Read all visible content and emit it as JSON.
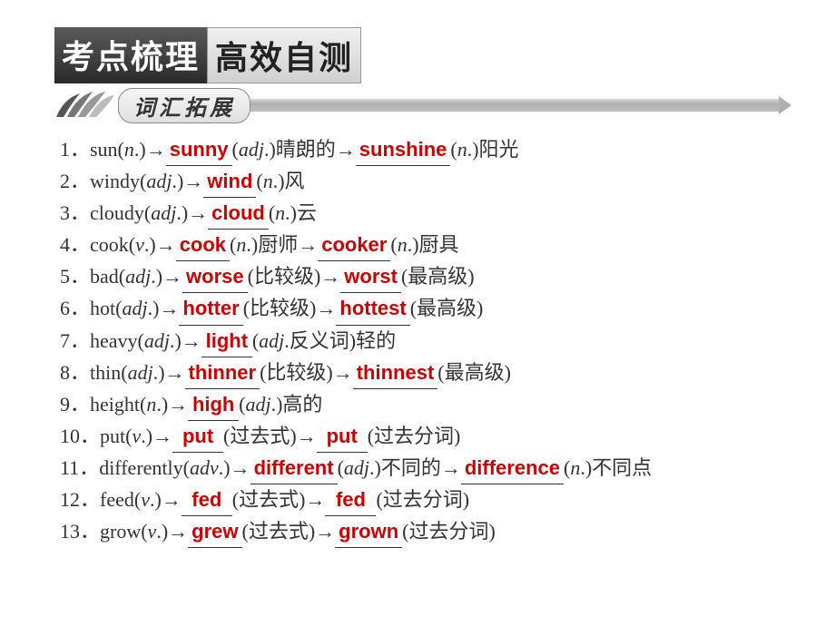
{
  "header": {
    "tab1": "考点梳理",
    "tab2": "高效自测"
  },
  "subheader": "词汇拓展",
  "colors": {
    "answer": "#cc0000",
    "text": "#333333",
    "tab_dark_bg": "#2a2a2a",
    "tab_dark_fg": "#ffffff",
    "tab_light_fg": "#222222",
    "arrow_bar": "#b0b0b0"
  },
  "typography": {
    "tab_fontsize": 36,
    "subheader_fontsize": 24,
    "body_fontsize": 22,
    "line_height": 1.55
  },
  "items": [
    {
      "num": "1",
      "prefix": "．sun(",
      "pos1": "n",
      "mid1": ".)→",
      "ans1": "sunny",
      "mid2": "(",
      "pos2": "adj",
      "mid3": ".)晴朗的→",
      "ans2": "sunshine",
      "mid4": "(",
      "pos3": "n",
      "tail": ".)阳光"
    },
    {
      "num": "2",
      "prefix": "．windy(",
      "pos1": "adj",
      "mid1": ".)→",
      "ans1": "wind",
      "mid2": "(",
      "pos2": "n",
      "tail": ".)风"
    },
    {
      "num": "3",
      "prefix": "．cloudy(",
      "pos1": "adj",
      "mid1": ".)→",
      "ans1": "cloud",
      "mid2": "(",
      "pos2": "n",
      "tail": ".)云"
    },
    {
      "num": "4",
      "prefix": "．cook(",
      "pos1": "v",
      "mid1": ".)→",
      "ans1": "cook",
      "mid2": "(",
      "pos2": "n",
      "mid3": ".)厨师→",
      "ans2": "cooker",
      "mid4": "(",
      "pos3": "n",
      "tail": ".)厨具"
    },
    {
      "num": "5",
      "prefix": "．bad(",
      "pos1": "adj",
      "mid1": ".)→",
      "ans1": "worse",
      "mid2": "(比较级)→",
      "ans2": "worst",
      "tail": "(最高级)"
    },
    {
      "num": "6",
      "prefix": "．hot(",
      "pos1": "adj",
      "mid1": ".)→",
      "ans1": "hotter",
      "mid2": "(比较级)→",
      "ans2": "hottest",
      "tail": "(最高级)"
    },
    {
      "num": "7",
      "prefix": "．heavy(",
      "pos1": "adj",
      "mid1": ".)→",
      "ans1": "light",
      "mid2": "(",
      "pos2": "adj",
      "tail": ".反义词)轻的"
    },
    {
      "num": "8",
      "prefix": "．thin(",
      "pos1": "adj",
      "mid1": ".)→",
      "ans1": "thinner",
      "mid2": "(比较级)→",
      "ans2": "thinnest",
      "tail": "(最高级)"
    },
    {
      "num": "9",
      "prefix": "．height(",
      "pos1": "n",
      "mid1": ".)→",
      "ans1": "high",
      "mid2": "(",
      "pos2": "adj",
      "tail": ".)高的"
    },
    {
      "num": "10",
      "prefix": "．put(",
      "pos1": "v",
      "mid1": ".)→",
      "ans1": "put",
      "mid2": "(过去式)→",
      "ans2": "put",
      "tail": "(过去分词)"
    },
    {
      "num": "11",
      "prefix": "．differently(",
      "pos1": "adv",
      "mid1": ".)→",
      "ans1": "different",
      "mid2": "(",
      "pos2": "adj",
      "mid3": ".)不同的→",
      "ans2": "difference",
      "mid4": "(",
      "pos3": "n",
      "tail": ".)不同点"
    },
    {
      "num": "12",
      "prefix": "．feed(",
      "pos1": "v",
      "mid1": ".)→",
      "ans1": "fed",
      "mid2": "(过去式)→",
      "ans2": "fed",
      "tail": "(过去分词)"
    },
    {
      "num": "13",
      "prefix": "．grow(",
      "pos1": "v",
      "mid1": ".)→",
      "ans1": "grew",
      "mid2": "(过去式)→",
      "ans2": "grown",
      "tail": "(过去分词)"
    }
  ]
}
